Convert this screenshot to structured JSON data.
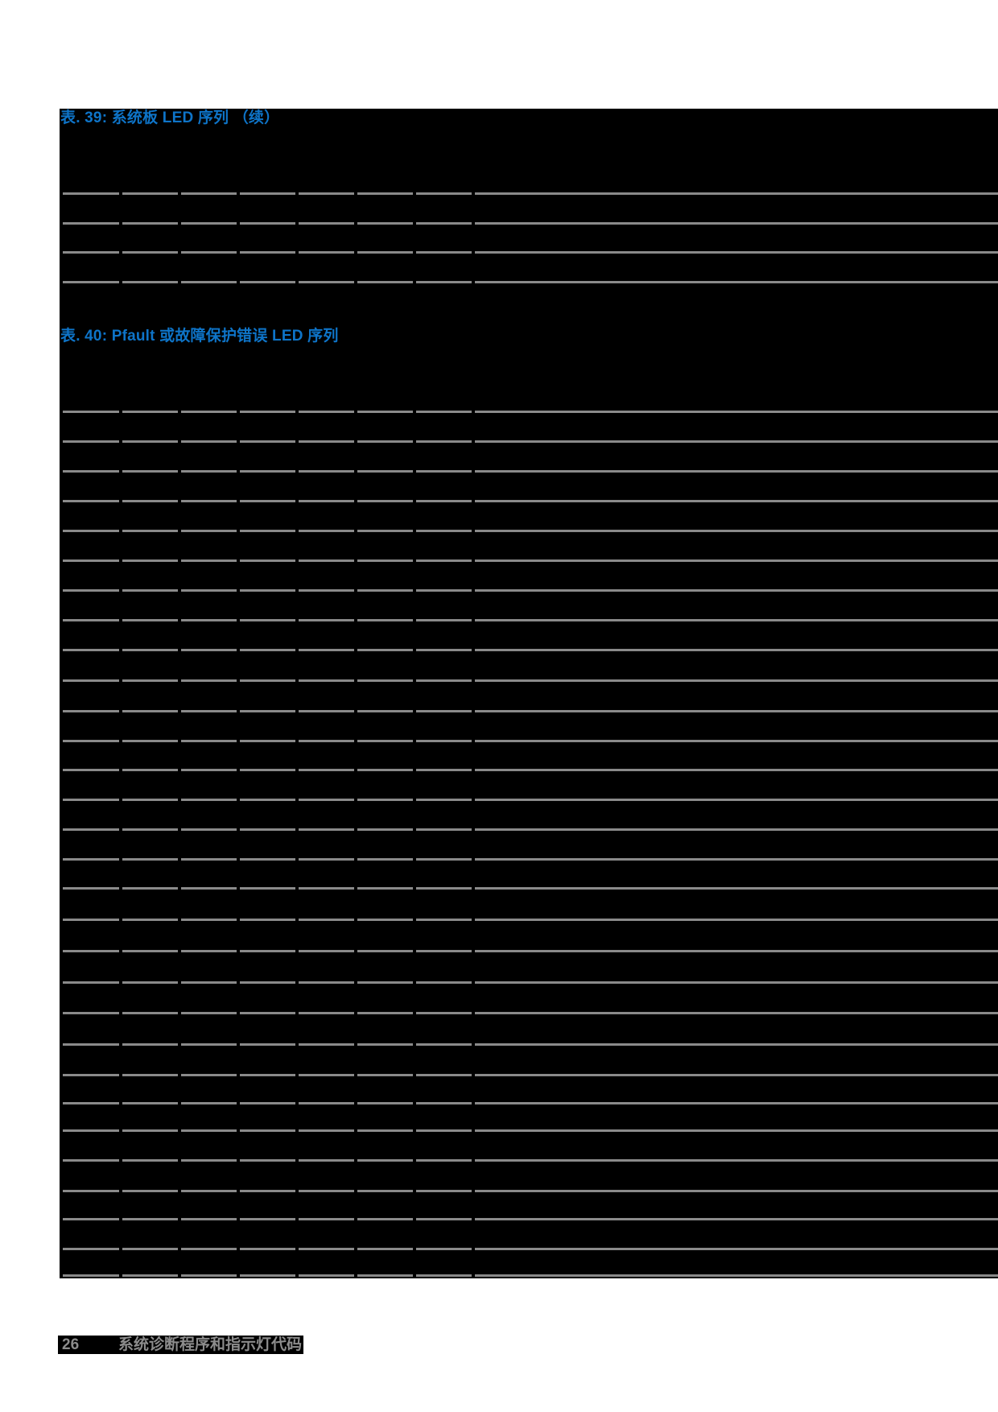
{
  "page": {
    "background_color": "#000000",
    "accent_blue": "#0e74c8",
    "rule_gray": "#8a8a8a",
    "footer_text_gray": "#8c8c8c"
  },
  "tables": [
    {
      "id": "table-39",
      "title": "表. 39: 系统板 LED 序列 （续）",
      "columns": 8,
      "visible_row_lines": 4
    },
    {
      "id": "table-40",
      "title": "表. 40: Pfault 或故障保护错误 LED 序列",
      "columns": 8,
      "visible_row_lines": 30
    }
  ],
  "footer": {
    "page_number": "26",
    "title": "系统诊断程序和指示灯代码"
  }
}
